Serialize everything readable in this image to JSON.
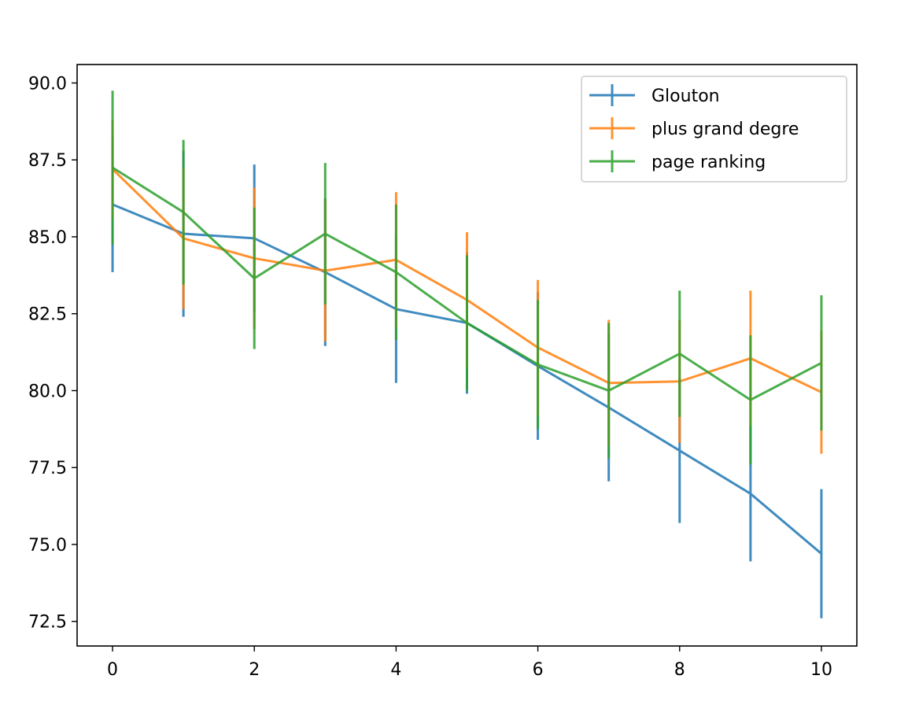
{
  "chart_data": {
    "type": "line",
    "title": "",
    "xlabel": "",
    "ylabel": "",
    "x": [
      0,
      1,
      2,
      3,
      4,
      5,
      6,
      7,
      8,
      9,
      10
    ],
    "xlim": [
      -0.5,
      10.5
    ],
    "ylim": [
      71.7,
      90.6
    ],
    "xticks": [
      0,
      2,
      4,
      6,
      8,
      10
    ],
    "xtick_labels": [
      "0",
      "2",
      "4",
      "6",
      "8",
      "10"
    ],
    "yticks": [
      72.5,
      75.0,
      77.5,
      80.0,
      82.5,
      85.0,
      87.5,
      90.0
    ],
    "ytick_labels": [
      "72.5",
      "75.0",
      "77.5",
      "80.0",
      "82.5",
      "85.0",
      "87.5",
      "90.0"
    ],
    "grid": false,
    "legend_position": "top-right",
    "series": [
      {
        "name": "Glouton",
        "color": "#1f77b4",
        "values": [
          86.05,
          85.1,
          84.95,
          83.85,
          82.65,
          82.2,
          80.8,
          79.45,
          78.05,
          76.65,
          74.7
        ],
        "err": [
          2.2,
          2.7,
          2.4,
          2.4,
          2.4,
          2.3,
          2.4,
          2.4,
          2.35,
          2.2,
          2.1
        ]
      },
      {
        "name": "plus grand degre",
        "color": "#ff7f0e",
        "values": [
          87.2,
          84.95,
          84.3,
          83.9,
          84.25,
          82.95,
          81.4,
          80.25,
          80.3,
          81.05,
          79.95
        ],
        "err": [
          1.6,
          2.3,
          2.3,
          2.3,
          2.2,
          2.2,
          2.2,
          2.05,
          2.0,
          2.2,
          2.0
        ]
      },
      {
        "name": "page ranking",
        "color": "#2ca02c",
        "values": [
          87.25,
          85.8,
          83.65,
          85.1,
          83.85,
          82.2,
          80.85,
          80.0,
          81.2,
          79.7,
          80.9
        ],
        "err": [
          2.5,
          2.35,
          2.3,
          2.3,
          2.2,
          2.2,
          2.1,
          2.2,
          2.05,
          2.1,
          2.2
        ]
      }
    ]
  }
}
